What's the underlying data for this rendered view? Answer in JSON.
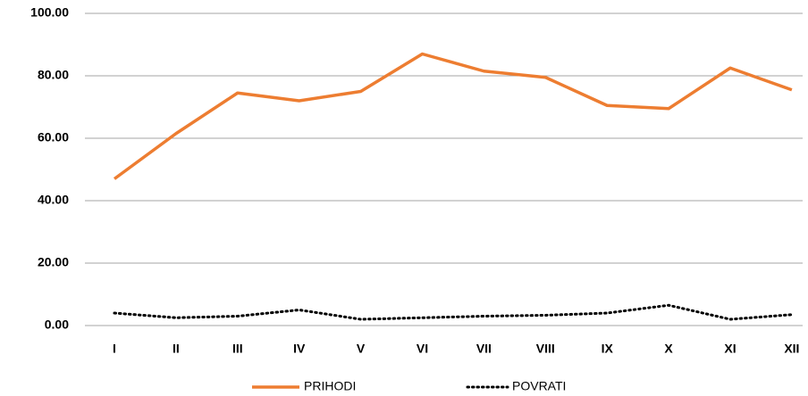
{
  "chart_data": {
    "type": "line",
    "categories": [
      "I",
      "II",
      "III",
      "IV",
      "V",
      "VI",
      "VII",
      "VIII",
      "IX",
      "X",
      "XI",
      "XII"
    ],
    "series": [
      {
        "name": "PRIHODI",
        "color": "#ed7d31",
        "style": "solid",
        "values": [
          47,
          61.5,
          74.5,
          72,
          75,
          87,
          81.5,
          79.5,
          70.5,
          69.5,
          82.5,
          75.5
        ]
      },
      {
        "name": "POVRATI",
        "color": "#000000",
        "style": "dotted",
        "values": [
          4,
          2.5,
          3,
          5,
          2,
          2.5,
          3,
          3.3,
          4,
          6.5,
          2,
          3.5
        ]
      }
    ],
    "ylim": [
      0,
      100
    ],
    "yticks": [
      {
        "value": 0,
        "label": "0.00"
      },
      {
        "value": 20,
        "label": "20.00"
      },
      {
        "value": 40,
        "label": "40.00"
      },
      {
        "value": 60,
        "label": "60.00"
      },
      {
        "value": 80,
        "label": "80.00"
      },
      {
        "value": 100,
        "label": "100.00"
      }
    ],
    "grid": true,
    "legend": "bottom"
  }
}
